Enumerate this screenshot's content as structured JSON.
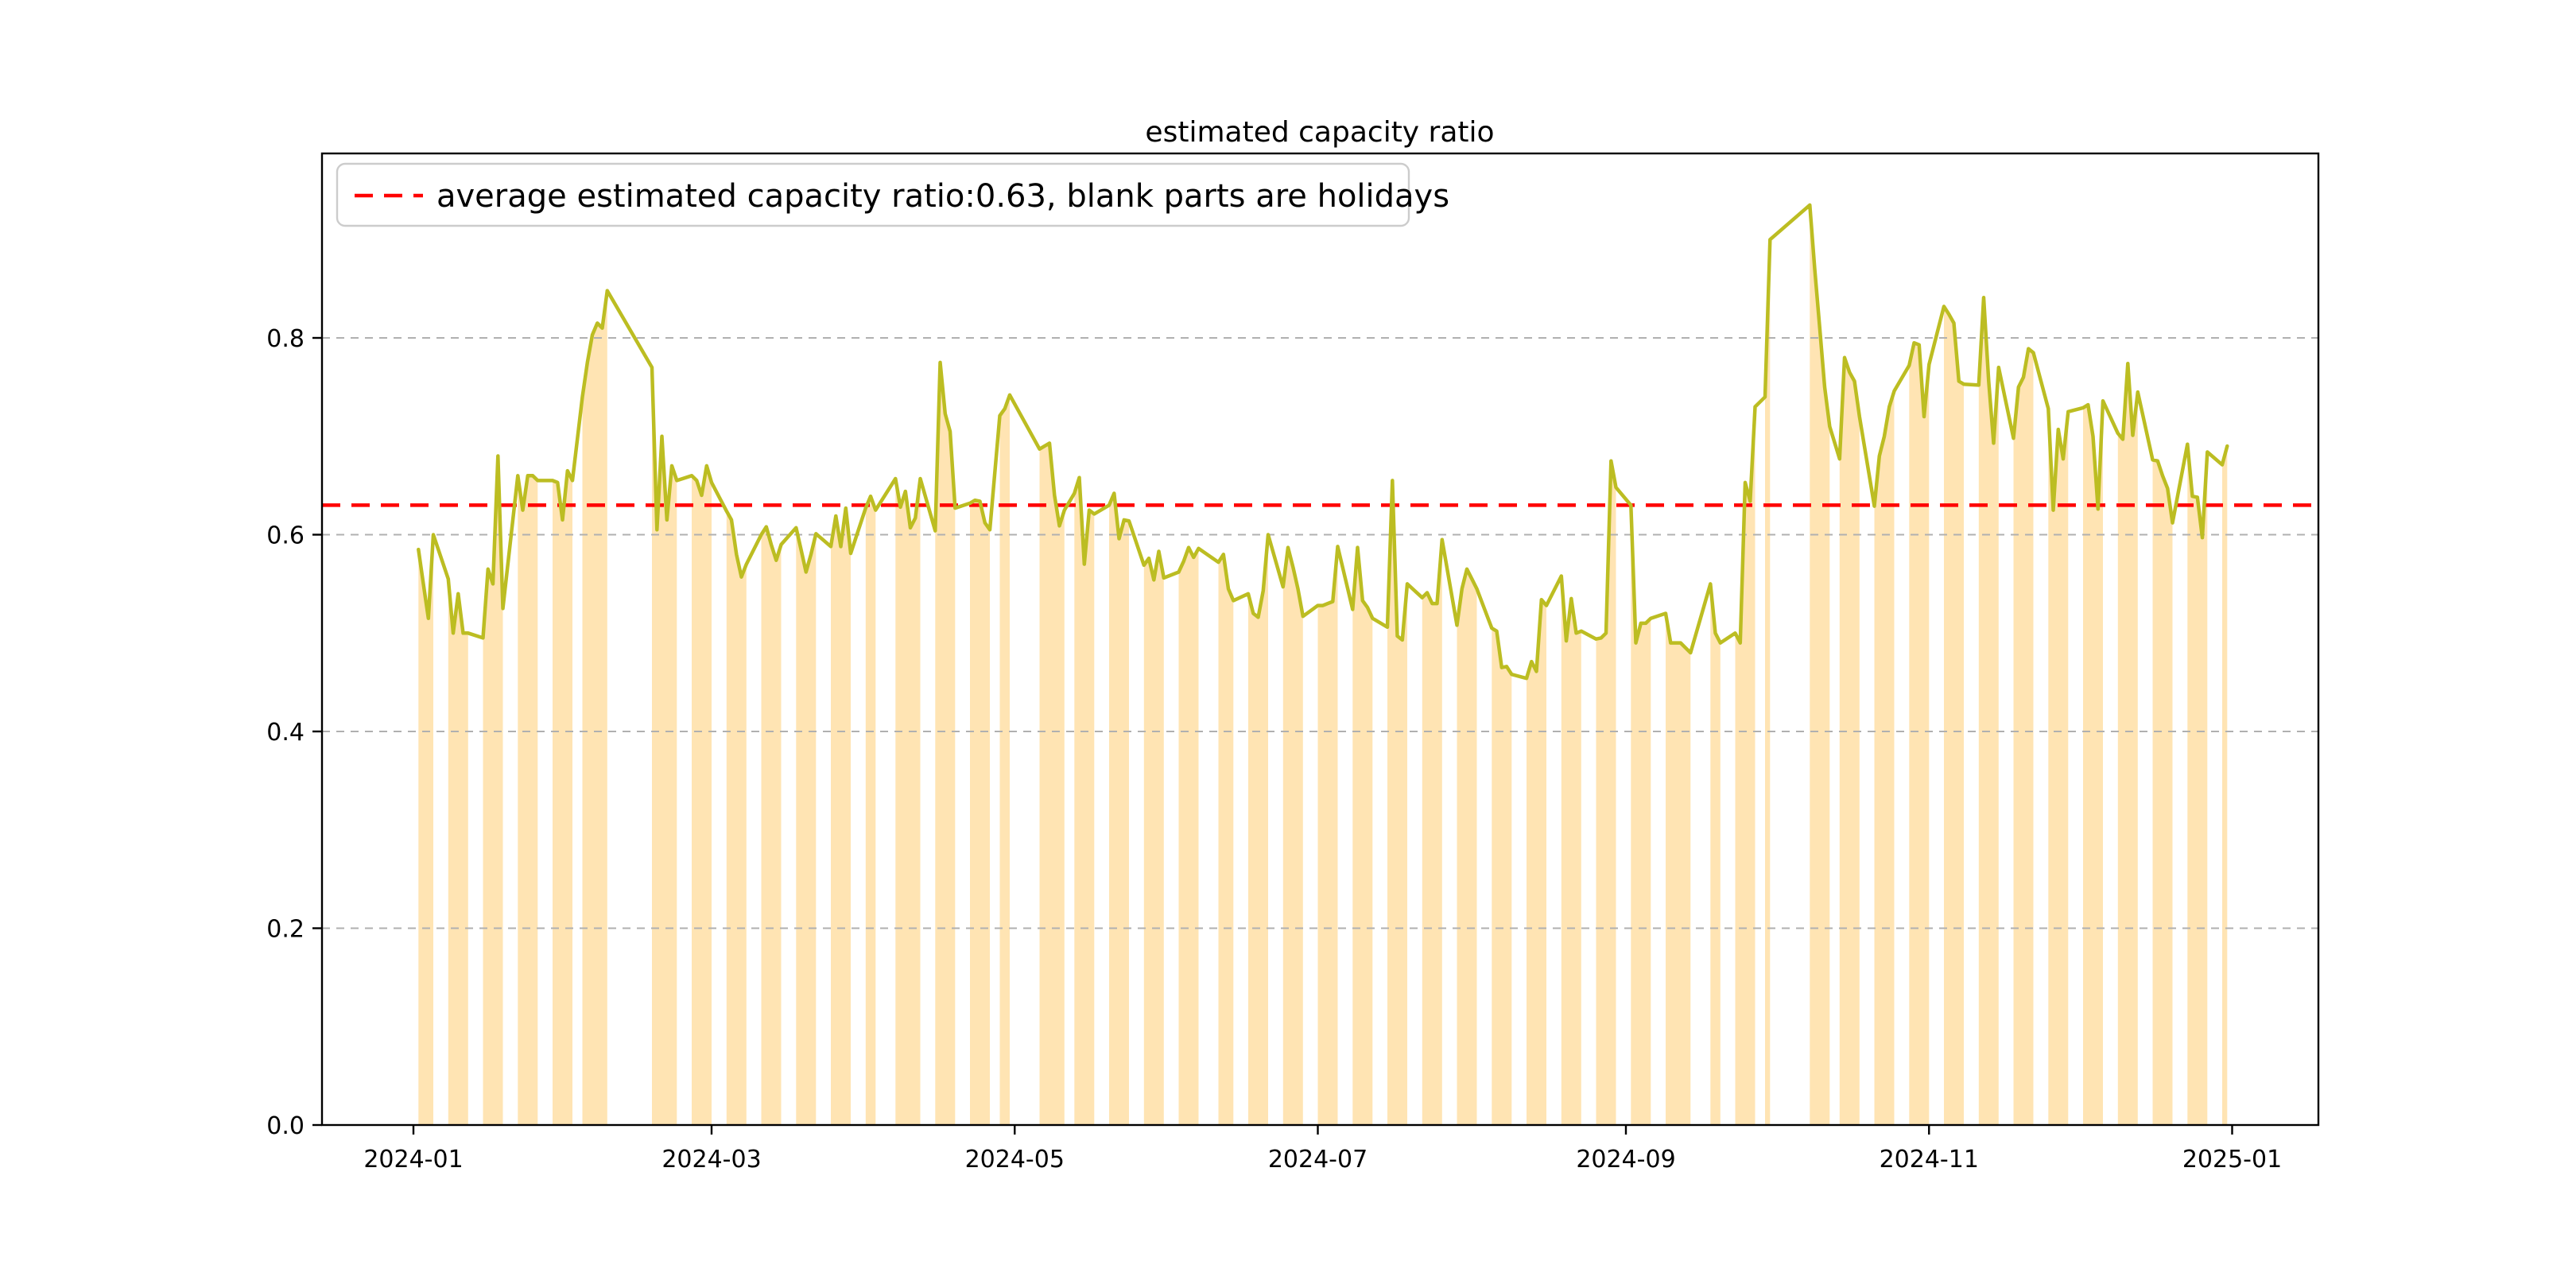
{
  "chart_data": {
    "type": "line",
    "title": "estimated capacity ratio",
    "legend_label": "average estimated capacity ratio:0.63, blank parts are holidays",
    "average_value": 0.63,
    "note": "orange area = value filled under line on workdays; blank gaps are weekends/holidays",
    "colors": {
      "line": "#bcbd22",
      "area": "#ffe4b3",
      "average_line": "#ff0000",
      "grid": "#b0b0b0",
      "frame": "#000000",
      "legend_border": "#cccccc"
    },
    "ylim": [
      0.0,
      0.9875
    ],
    "grid": true,
    "legend_position": "upper-left",
    "y_ticks": [
      {
        "label": "0.0",
        "value": 0.0
      },
      {
        "label": "0.2",
        "value": 0.2
      },
      {
        "label": "0.4",
        "value": 0.4
      },
      {
        "label": "0.6",
        "value": 0.6
      },
      {
        "label": "0.8",
        "value": 0.8
      }
    ],
    "x_ticks": [
      {
        "label": "2024-01",
        "day": 0
      },
      {
        "label": "2024-03",
        "day": 60
      },
      {
        "label": "2024-05",
        "day": 121
      },
      {
        "label": "2024-07",
        "day": 182
      },
      {
        "label": "2024-09",
        "day": 244
      },
      {
        "label": "2024-11",
        "day": 305
      },
      {
        "label": "2025-01",
        "day": 366
      }
    ],
    "dates": [
      "2024-01-02",
      "2024-01-03",
      "2024-01-04",
      "2024-01-05",
      "2024-01-08",
      "2024-01-09",
      "2024-01-10",
      "2024-01-11",
      "2024-01-12",
      "2024-01-15",
      "2024-01-16",
      "2024-01-17",
      "2024-01-18",
      "2024-01-19",
      "2024-01-22",
      "2024-01-23",
      "2024-01-24",
      "2024-01-25",
      "2024-01-26",
      "2024-01-29",
      "2024-01-30",
      "2024-01-31",
      "2024-02-01",
      "2024-02-02",
      "2024-02-04",
      "2024-02-05",
      "2024-02-06",
      "2024-02-07",
      "2024-02-08",
      "2024-02-09",
      "2024-02-18",
      "2024-02-19",
      "2024-02-20",
      "2024-02-21",
      "2024-02-22",
      "2024-02-23",
      "2024-02-26",
      "2024-02-27",
      "2024-02-28",
      "2024-02-29",
      "2024-03-01",
      "2024-03-04",
      "2024-03-05",
      "2024-03-06",
      "2024-03-07",
      "2024-03-08",
      "2024-03-11",
      "2024-03-12",
      "2024-03-13",
      "2024-03-14",
      "2024-03-15",
      "2024-03-18",
      "2024-03-19",
      "2024-03-20",
      "2024-03-21",
      "2024-03-22",
      "2024-03-25",
      "2024-03-26",
      "2024-03-27",
      "2024-03-28",
      "2024-03-29",
      "2024-04-01",
      "2024-04-02",
      "2024-04-03",
      "2024-04-07",
      "2024-04-08",
      "2024-04-09",
      "2024-04-10",
      "2024-04-11",
      "2024-04-12",
      "2024-04-15",
      "2024-04-16",
      "2024-04-17",
      "2024-04-18",
      "2024-04-19",
      "2024-04-22",
      "2024-04-23",
      "2024-04-24",
      "2024-04-25",
      "2024-04-26",
      "2024-04-28",
      "2024-04-29",
      "2024-04-30",
      "2024-05-06",
      "2024-05-07",
      "2024-05-08",
      "2024-05-09",
      "2024-05-10",
      "2024-05-11",
      "2024-05-13",
      "2024-05-14",
      "2024-05-15",
      "2024-05-16",
      "2024-05-17",
      "2024-05-20",
      "2024-05-21",
      "2024-05-22",
      "2024-05-23",
      "2024-05-24",
      "2024-05-27",
      "2024-05-28",
      "2024-05-29",
      "2024-05-30",
      "2024-05-31",
      "2024-06-03",
      "2024-06-04",
      "2024-06-05",
      "2024-06-06",
      "2024-06-07",
      "2024-06-11",
      "2024-06-12",
      "2024-06-13",
      "2024-06-14",
      "2024-06-17",
      "2024-06-18",
      "2024-06-19",
      "2024-06-20",
      "2024-06-21",
      "2024-06-24",
      "2024-06-25",
      "2024-06-26",
      "2024-06-27",
      "2024-06-28",
      "2024-07-01",
      "2024-07-02",
      "2024-07-03",
      "2024-07-04",
      "2024-07-05",
      "2024-07-08",
      "2024-07-09",
      "2024-07-10",
      "2024-07-11",
      "2024-07-12",
      "2024-07-15",
      "2024-07-16",
      "2024-07-17",
      "2024-07-18",
      "2024-07-19",
      "2024-07-22",
      "2024-07-23",
      "2024-07-24",
      "2024-07-25",
      "2024-07-26",
      "2024-07-29",
      "2024-07-30",
      "2024-07-31",
      "2024-08-01",
      "2024-08-02",
      "2024-08-05",
      "2024-08-06",
      "2024-08-07",
      "2024-08-08",
      "2024-08-09",
      "2024-08-12",
      "2024-08-13",
      "2024-08-14",
      "2024-08-15",
      "2024-08-16",
      "2024-08-19",
      "2024-08-20",
      "2024-08-21",
      "2024-08-22",
      "2024-08-23",
      "2024-08-26",
      "2024-08-27",
      "2024-08-28",
      "2024-08-29",
      "2024-08-30",
      "2024-09-02",
      "2024-09-03",
      "2024-09-04",
      "2024-09-05",
      "2024-09-06",
      "2024-09-09",
      "2024-09-10",
      "2024-09-11",
      "2024-09-12",
      "2024-09-13",
      "2024-09-14",
      "2024-09-18",
      "2024-09-19",
      "2024-09-20",
      "2024-09-23",
      "2024-09-24",
      "2024-09-25",
      "2024-09-26",
      "2024-09-27",
      "2024-09-29",
      "2024-09-30",
      "2024-10-08",
      "2024-10-09",
      "2024-10-10",
      "2024-10-11",
      "2024-10-12",
      "2024-10-14",
      "2024-10-15",
      "2024-10-16",
      "2024-10-17",
      "2024-10-18",
      "2024-10-21",
      "2024-10-22",
      "2024-10-23",
      "2024-10-24",
      "2024-10-25",
      "2024-10-28",
      "2024-10-29",
      "2024-10-30",
      "2024-10-31",
      "2024-11-01",
      "2024-11-04",
      "2024-11-05",
      "2024-11-06",
      "2024-11-07",
      "2024-11-08",
      "2024-11-11",
      "2024-11-12",
      "2024-11-13",
      "2024-11-14",
      "2024-11-15",
      "2024-11-18",
      "2024-11-19",
      "2024-11-20",
      "2024-11-21",
      "2024-11-22",
      "2024-11-25",
      "2024-11-26",
      "2024-11-27",
      "2024-11-28",
      "2024-11-29",
      "2024-12-02",
      "2024-12-03",
      "2024-12-04",
      "2024-12-05",
      "2024-12-06",
      "2024-12-09",
      "2024-12-10",
      "2024-12-11",
      "2024-12-12",
      "2024-12-13",
      "2024-12-16",
      "2024-12-17",
      "2024-12-18",
      "2024-12-19",
      "2024-12-20",
      "2024-12-23",
      "2024-12-24",
      "2024-12-25",
      "2024-12-26",
      "2024-12-27",
      "2024-12-30",
      "2024-12-31"
    ],
    "values": [
      0.585,
      0.55,
      0.515,
      0.6,
      0.555,
      0.5,
      0.54,
      0.5,
      0.5,
      0.495,
      0.565,
      0.55,
      0.68,
      0.525,
      0.66,
      0.625,
      0.66,
      0.66,
      0.655,
      0.655,
      0.653,
      0.615,
      0.665,
      0.655,
      0.74,
      0.775,
      0.803,
      0.815,
      0.81,
      0.848,
      0.77,
      0.605,
      0.7,
      0.615,
      0.67,
      0.655,
      0.66,
      0.655,
      0.64,
      0.67,
      0.653,
      0.624,
      0.615,
      0.58,
      0.557,
      0.57,
      0.6,
      0.608,
      0.59,
      0.574,
      0.59,
      0.607,
      0.585,
      0.562,
      0.58,
      0.601,
      0.588,
      0.619,
      0.588,
      0.627,
      0.581,
      0.627,
      0.639,
      0.625,
      0.657,
      0.628,
      0.644,
      0.607,
      0.617,
      0.657,
      0.604,
      0.775,
      0.723,
      0.705,
      0.627,
      0.632,
      0.635,
      0.634,
      0.612,
      0.605,
      0.721,
      0.728,
      0.742,
      0.687,
      0.69,
      0.693,
      0.64,
      0.609,
      0.625,
      0.642,
      0.658,
      0.57,
      0.625,
      0.621,
      0.63,
      0.642,
      0.596,
      0.615,
      0.614,
      0.569,
      0.576,
      0.554,
      0.583,
      0.556,
      0.562,
      0.573,
      0.587,
      0.577,
      0.586,
      0.572,
      0.58,
      0.545,
      0.533,
      0.54,
      0.52,
      0.516,
      0.543,
      0.6,
      0.547,
      0.587,
      0.567,
      0.545,
      0.517,
      0.528,
      0.528,
      0.53,
      0.532,
      0.588,
      0.524,
      0.587,
      0.533,
      0.526,
      0.515,
      0.506,
      0.655,
      0.497,
      0.493,
      0.55,
      0.536,
      0.541,
      0.53,
      0.53,
      0.595,
      0.508,
      0.545,
      0.565,
      0.555,
      0.545,
      0.505,
      0.502,
      0.465,
      0.466,
      0.458,
      0.454,
      0.471,
      0.461,
      0.534,
      0.528,
      0.558,
      0.492,
      0.535,
      0.5,
      0.502,
      0.494,
      0.495,
      0.5,
      0.675,
      0.648,
      0.63,
      0.49,
      0.51,
      0.51,
      0.515,
      0.52,
      0.49,
      0.49,
      0.49,
      0.485,
      0.48,
      0.55,
      0.5,
      0.49,
      0.5,
      0.49,
      0.653,
      0.634,
      0.73,
      0.74,
      0.9,
      0.935,
      0.87,
      0.81,
      0.75,
      0.71,
      0.677,
      0.78,
      0.765,
      0.756,
      0.72,
      0.629,
      0.68,
      0.7,
      0.73,
      0.746,
      0.772,
      0.795,
      0.793,
      0.72,
      0.773,
      0.832,
      0.824,
      0.815,
      0.756,
      0.753,
      0.752,
      0.841,
      0.756,
      0.693,
      0.77,
      0.698,
      0.75,
      0.76,
      0.789,
      0.785,
      0.728,
      0.625,
      0.707,
      0.677,
      0.725,
      0.729,
      0.732,
      0.7,
      0.626,
      0.736,
      0.703,
      0.697,
      0.774,
      0.701,
      0.745,
      0.676,
      0.675,
      0.66,
      0.647,
      0.612,
      0.692,
      0.639,
      0.638,
      0.597,
      0.684,
      0.671,
      0.69
    ]
  }
}
